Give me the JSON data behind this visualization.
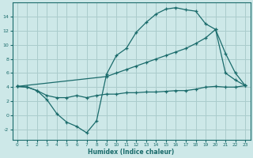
{
  "xlabel": "Humidex (Indice chaleur)",
  "bg_color": "#cde8e8",
  "line_color": "#1a6b6b",
  "grid_color": "#aacccc",
  "xlim": [
    -0.5,
    23.5
  ],
  "ylim": [
    -3.5,
    16.0
  ],
  "xticks": [
    0,
    1,
    2,
    3,
    4,
    5,
    6,
    7,
    8,
    9,
    10,
    11,
    12,
    13,
    14,
    15,
    16,
    17,
    18,
    19,
    20,
    21,
    22,
    23
  ],
  "yticks": [
    -2,
    0,
    2,
    4,
    6,
    8,
    10,
    12,
    14
  ],
  "curve1_x": [
    0,
    1,
    2,
    3,
    4,
    5,
    6,
    7,
    8,
    9,
    10,
    11,
    12,
    13,
    14,
    15,
    16,
    17,
    18,
    19,
    20,
    21,
    22,
    23
  ],
  "curve1_y": [
    4.1,
    4.0,
    3.5,
    2.2,
    0.2,
    -1.0,
    -1.6,
    -2.5,
    -0.8,
    5.8,
    8.5,
    9.5,
    11.8,
    13.2,
    14.4,
    15.1,
    15.3,
    15.0,
    14.8,
    13.0,
    12.2,
    6.0,
    5.0,
    4.2
  ],
  "curve2_x": [
    0,
    9,
    10,
    11,
    12,
    13,
    14,
    15,
    16,
    17,
    18,
    19,
    20,
    21,
    22,
    23
  ],
  "curve2_y": [
    4.1,
    5.5,
    6.0,
    6.5,
    7.0,
    7.5,
    8.0,
    8.5,
    9.0,
    9.5,
    10.2,
    11.0,
    12.2,
    8.8,
    6.0,
    4.2
  ],
  "curve3_x": [
    0,
    1,
    2,
    3,
    4,
    5,
    6,
    7,
    8,
    9,
    10,
    11,
    12,
    13,
    14,
    15,
    16,
    17,
    18,
    19,
    20,
    21,
    22,
    23
  ],
  "curve3_y": [
    4.1,
    4.0,
    3.5,
    2.8,
    2.5,
    2.5,
    2.8,
    2.5,
    2.8,
    3.0,
    3.0,
    3.2,
    3.2,
    3.3,
    3.3,
    3.4,
    3.5,
    3.5,
    3.7,
    4.0,
    4.1,
    4.0,
    4.0,
    4.2
  ]
}
